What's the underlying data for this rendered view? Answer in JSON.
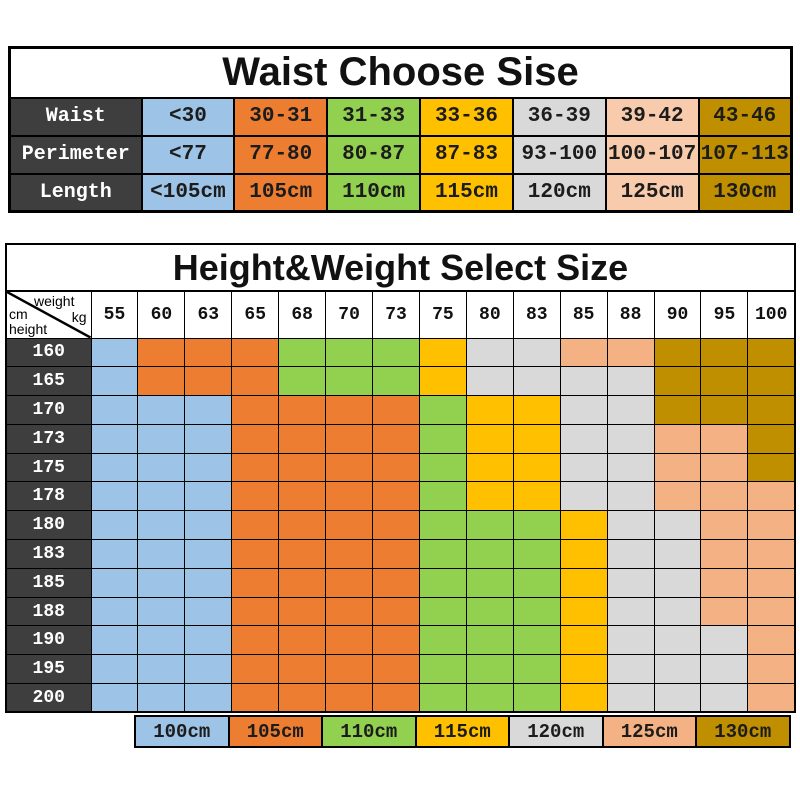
{
  "chart_data": [
    {
      "type": "table",
      "title": "Waist Choose Sise",
      "rows": [
        {
          "label": "Waist",
          "values": [
            "<30",
            "30-31",
            "31-33",
            "33-36",
            "36-39",
            "39-42",
            "43-46"
          ]
        },
        {
          "label": "Perimeter",
          "values": [
            "<77",
            "77-80",
            "80-87",
            "87-83",
            "93-100",
            "100-107",
            "107-113"
          ]
        },
        {
          "label": "Length",
          "values": [
            "<105cm",
            "105cm",
            "110cm",
            "115cm",
            "120cm",
            "125cm",
            "130cm"
          ]
        }
      ],
      "column_colors": [
        "#9DC3E6",
        "#ED7D31",
        "#92D050",
        "#FFC000",
        "#D9D9D9",
        "#F8CBAD",
        "#BF8F00"
      ],
      "header_bg": "#3E3E3E"
    },
    {
      "type": "heatmap",
      "title": "Height&Weight Select Size",
      "corner": {
        "top": "weight",
        "right": "kg",
        "left": "cm",
        "bottom": "height"
      },
      "weights": [
        "55",
        "60",
        "63",
        "65",
        "68",
        "70",
        "73",
        "75",
        "80",
        "83",
        "85",
        "88",
        "90",
        "95",
        "100"
      ],
      "heights": [
        "160",
        "165",
        "170",
        "173",
        "175",
        "178",
        "180",
        "183",
        "185",
        "188",
        "190",
        "195",
        "200"
      ],
      "grid": [
        [
          "100",
          "105",
          "105",
          "105",
          "110",
          "110",
          "110",
          "115",
          "120",
          "120",
          "125",
          "125",
          "130",
          "130",
          "130"
        ],
        [
          "100",
          "105",
          "105",
          "105",
          "110",
          "110",
          "110",
          "115",
          "120",
          "120",
          "120",
          "120",
          "130",
          "130",
          "130"
        ],
        [
          "100",
          "100",
          "100",
          "105",
          "105",
          "105",
          "105",
          "110",
          "115",
          "115",
          "120",
          "120",
          "130",
          "130",
          "130"
        ],
        [
          "100",
          "100",
          "100",
          "105",
          "105",
          "105",
          "105",
          "110",
          "115",
          "115",
          "120",
          "120",
          "125",
          "125",
          "130"
        ],
        [
          "100",
          "100",
          "100",
          "105",
          "105",
          "105",
          "105",
          "110",
          "115",
          "115",
          "120",
          "120",
          "125",
          "125",
          "130"
        ],
        [
          "100",
          "100",
          "100",
          "105",
          "105",
          "105",
          "105",
          "110",
          "115",
          "115",
          "120",
          "120",
          "125",
          "125",
          "125"
        ],
        [
          "100",
          "100",
          "100",
          "105",
          "105",
          "105",
          "105",
          "110",
          "110",
          "110",
          "115",
          "120",
          "120",
          "125",
          "125"
        ],
        [
          "100",
          "100",
          "100",
          "105",
          "105",
          "105",
          "105",
          "110",
          "110",
          "110",
          "115",
          "120",
          "120",
          "125",
          "125"
        ],
        [
          "100",
          "100",
          "100",
          "105",
          "105",
          "105",
          "105",
          "110",
          "110",
          "110",
          "115",
          "120",
          "120",
          "125",
          "125"
        ],
        [
          "100",
          "100",
          "100",
          "105",
          "105",
          "105",
          "105",
          "110",
          "110",
          "110",
          "115",
          "120",
          "120",
          "125",
          "125"
        ],
        [
          "100",
          "100",
          "100",
          "105",
          "105",
          "105",
          "105",
          "110",
          "110",
          "110",
          "115",
          "120",
          "120",
          "120",
          "125"
        ],
        [
          "100",
          "100",
          "100",
          "105",
          "105",
          "105",
          "105",
          "110",
          "110",
          "110",
          "115",
          "120",
          "120",
          "120",
          "125"
        ],
        [
          "100",
          "100",
          "100",
          "105",
          "105",
          "105",
          "105",
          "110",
          "110",
          "110",
          "115",
          "120",
          "120",
          "120",
          "125"
        ]
      ],
      "size_colors": {
        "100": "#9DC3E6",
        "105": "#ED7D31",
        "110": "#92D050",
        "115": "#FFC000",
        "120": "#D9D9D9",
        "125": "#F4B183",
        "130": "#BF8F00"
      },
      "legend": [
        {
          "label": "100cm",
          "color": "#9DC3E6"
        },
        {
          "label": "105cm",
          "color": "#ED7D31"
        },
        {
          "label": "110cm",
          "color": "#92D050"
        },
        {
          "label": "115cm",
          "color": "#FFC000"
        },
        {
          "label": "120cm",
          "color": "#D9D9D9"
        },
        {
          "label": "125cm",
          "color": "#F4B183"
        },
        {
          "label": "130cm",
          "color": "#BF8F00"
        }
      ],
      "header_bg": "#3E3E3E"
    }
  ]
}
